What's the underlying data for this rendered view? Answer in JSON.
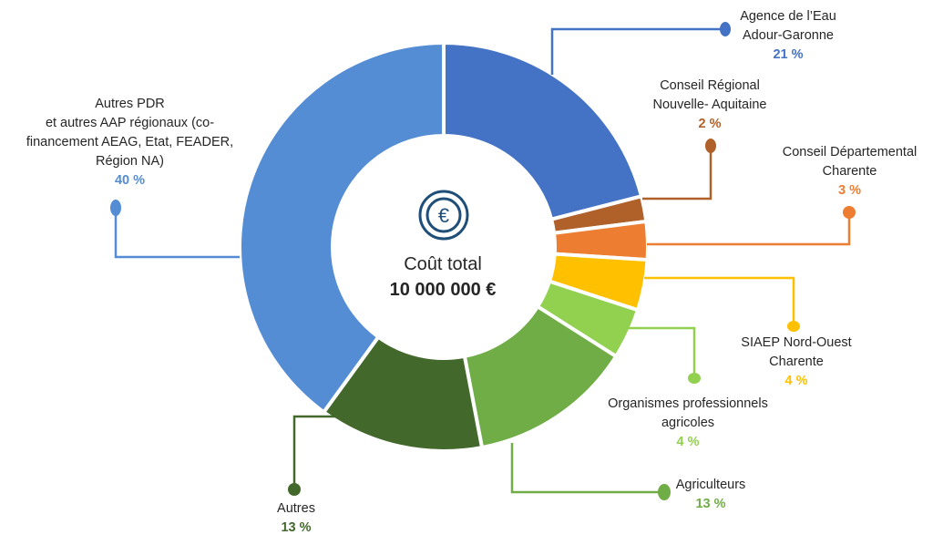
{
  "chart_data": {
    "type": "donut",
    "center": {
      "title": "Coût total",
      "value": "10 000 000 €",
      "icon": "euro-coin-icon"
    },
    "slices": [
      {
        "lines": [
          "Agence de l’Eau",
          "Adour-Garonne"
        ],
        "value": 21,
        "label": "21 %",
        "color": "#4472c4"
      },
      {
        "lines": [
          "Conseil Régional",
          "Nouvelle- Aquitaine"
        ],
        "value": 2,
        "label": "2 %",
        "color": "#b0612a"
      },
      {
        "lines": [
          "Conseil Départemental",
          "Charente"
        ],
        "value": 3,
        "label": "3 %",
        "color": "#ed7d31"
      },
      {
        "lines": [
          "SIAEP Nord-Ouest",
          "Charente"
        ],
        "value": 4,
        "label": "4 %",
        "color": "#ffc000"
      },
      {
        "lines": [
          "Organismes professionnels",
          "agricoles"
        ],
        "value": 4,
        "label": "4 %",
        "color": "#92d050"
      },
      {
        "lines": [
          "Agriculteurs"
        ],
        "value": 13,
        "label": "13 %",
        "color": "#70ad47"
      },
      {
        "lines": [
          "Autres"
        ],
        "value": 13,
        "label": "13 %",
        "color": "#43682b"
      },
      {
        "lines": [
          "Autres PDR",
          "et autres AAP régionaux (co-",
          "financement AEAG, Etat, FEADER,",
          "Région NA)"
        ],
        "value": 40,
        "label": "40 %",
        "color": "#548dd4"
      }
    ]
  }
}
